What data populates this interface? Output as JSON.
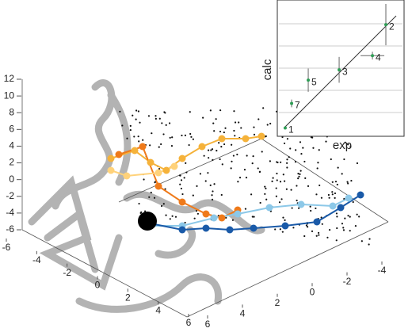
{
  "chart_data": [
    {
      "type": "axes3d",
      "zlim": [
        -6,
        12
      ],
      "zticks": [
        12,
        10,
        8,
        6,
        4,
        2,
        0,
        -2,
        -4,
        -6
      ],
      "xlim": [
        -6,
        6
      ],
      "xticks": [
        -6,
        -4,
        -2,
        0,
        2,
        4,
        6
      ],
      "ylim": [
        -4,
        6
      ],
      "yticks": [
        6,
        4,
        2,
        0,
        -2,
        -4
      ]
    },
    {
      "type": "scatter",
      "xlabel": "exp",
      "ylabel": "calc",
      "xlim": [
        0,
        10
      ],
      "ylim": [
        0,
        10
      ],
      "labels": [
        "1",
        "7",
        "5",
        "3",
        "4",
        "2"
      ],
      "x": [
        0.33,
        0.87,
        2.27,
        4.87,
        7.67,
        8.8
      ],
      "values": [
        0.4,
        2.3,
        4.1,
        4.9,
        6.0,
        8.4
      ],
      "y_errors": [
        0,
        0.3,
        0.9,
        1.0,
        0.3,
        1.6
      ],
      "x_errors": [
        0,
        0,
        0,
        0,
        1.0,
        0
      ],
      "color": "#2e9e55"
    }
  ]
}
